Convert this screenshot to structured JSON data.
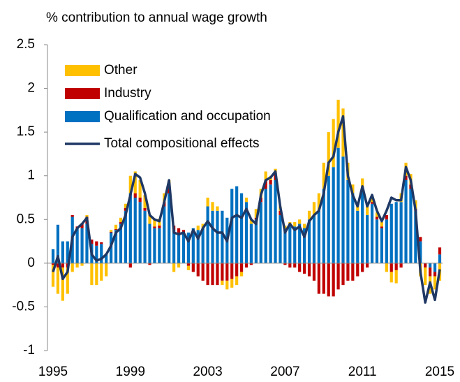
{
  "chart_data": {
    "type": "bar",
    "stacked": true,
    "y_label": "% contribution to annual wage growth",
    "x": [
      1995,
      1995.25,
      1995.5,
      1995.75,
      1996,
      1996.25,
      1996.5,
      1996.75,
      1997,
      1997.25,
      1997.5,
      1997.75,
      1998,
      1998.25,
      1998.5,
      1998.75,
      1999,
      1999.25,
      1999.5,
      1999.75,
      2000,
      2000.25,
      2000.5,
      2000.75,
      2001,
      2001.25,
      2001.5,
      2001.75,
      2002,
      2002.25,
      2002.5,
      2002.75,
      2003,
      2003.25,
      2003.5,
      2003.75,
      2004,
      2004.25,
      2004.5,
      2004.75,
      2005,
      2005.25,
      2005.5,
      2005.75,
      2006,
      2006.25,
      2006.5,
      2006.75,
      2007,
      2007.25,
      2007.5,
      2007.75,
      2008,
      2008.25,
      2008.5,
      2008.75,
      2009,
      2009.25,
      2009.5,
      2009.75,
      2010,
      2010.25,
      2010.5,
      2010.75,
      2011,
      2011.25,
      2011.5,
      2011.75,
      2012,
      2012.25,
      2012.5,
      2012.75,
      2013,
      2013.25,
      2013.5,
      2013.75,
      2014,
      2014.25,
      2014.5,
      2014.75,
      2015
    ],
    "series": [
      {
        "name": "Other",
        "color": "#ffc000",
        "values": [
          -0.25,
          -0.3,
          -0.38,
          -0.3,
          -0.1,
          -0.05,
          -0.03,
          0.02,
          -0.25,
          -0.25,
          -0.2,
          -0.15,
          0.02,
          0.05,
          0.05,
          0.05,
          0.2,
          0.25,
          0.2,
          0.15,
          0.1,
          0.08,
          0.08,
          0.1,
          0.05,
          -0.1,
          -0.05,
          0,
          -0.05,
          0,
          0.05,
          0.05,
          0.1,
          0.1,
          0.05,
          -0.05,
          -0.1,
          -0.1,
          -0.1,
          -0.05,
          0.05,
          0.05,
          0.1,
          0.1,
          0.1,
          0.05,
          0.05,
          0.05,
          0.05,
          0.05,
          0.05,
          0.05,
          0.05,
          0.1,
          0.15,
          0.2,
          0.3,
          0.5,
          0.55,
          0.55,
          0.55,
          0.2,
          0.1,
          0.05,
          0.15,
          0.1,
          0.05,
          0.05,
          0.05,
          -0.1,
          -0.12,
          -0.15,
          0.1,
          0.15,
          0.12,
          0.1,
          -0.15,
          -0.2,
          -0.2,
          -0.15,
          -0.2
        ]
      },
      {
        "name": "Industry",
        "color": "#c00000",
        "values": [
          -0.02,
          -0.05,
          -0.05,
          -0.05,
          0.02,
          0.02,
          0.05,
          0.08,
          0.05,
          0.05,
          0.02,
          0.01,
          0.01,
          0.01,
          0.02,
          0.03,
          -0.05,
          0.05,
          0.05,
          0.03,
          -0.02,
          0.02,
          0.03,
          0.05,
          0.1,
          0.05,
          0.05,
          0.03,
          -0.03,
          -0.1,
          -0.15,
          -0.2,
          -0.25,
          -0.25,
          -0.25,
          -0.2,
          -0.2,
          -0.18,
          -0.15,
          -0.1,
          -0.05,
          -0.02,
          0.02,
          0.05,
          0.1,
          0.05,
          0.08,
          0.05,
          -0.02,
          -0.05,
          -0.05,
          -0.1,
          -0.12,
          -0.15,
          -0.2,
          -0.35,
          -0.35,
          -0.38,
          -0.38,
          -0.3,
          -0.25,
          -0.2,
          -0.2,
          -0.15,
          -0.1,
          -0.05,
          0.02,
          0.03,
          0.02,
          0.05,
          -0.1,
          -0.08,
          -0.05,
          0.05,
          0.05,
          0.02,
          0.05,
          -0.05,
          -0.1,
          -0.05,
          0.08
        ]
      },
      {
        "name": "Qualification and occupation",
        "color": "#0070c0",
        "values": [
          0.16,
          0.44,
          0.25,
          0.25,
          0.53,
          0.4,
          0.4,
          0.45,
          0.22,
          0.2,
          0.22,
          0.1,
          0.35,
          0.38,
          0.45,
          0.6,
          0.8,
          0.75,
          0.7,
          0.6,
          0.45,
          0.4,
          0.4,
          0.65,
          0.8,
          0.38,
          0.35,
          0.35,
          0.35,
          0.4,
          0.38,
          0.4,
          0.65,
          0.6,
          0.6,
          0.6,
          0.52,
          0.85,
          0.88,
          0.8,
          0.7,
          0.45,
          0.5,
          0.7,
          0.85,
          0.9,
          0.95,
          0.55,
          0.38,
          0.42,
          0.42,
          0.45,
          0.4,
          0.5,
          0.55,
          0.6,
          0.85,
          1.0,
          1.1,
          1.32,
          1.22,
          0.95,
          0.8,
          0.6,
          0.82,
          0.55,
          0.68,
          0.5,
          0.4,
          0.5,
          0.68,
          0.7,
          0.7,
          0.95,
          0.85,
          0.6,
          0.25,
          0,
          -0.05,
          -0.1,
          0.1
        ]
      },
      {
        "name": "Total compositional effects",
        "color": "#1f3864",
        "type": "line",
        "values": [
          -0.1,
          0.08,
          -0.18,
          -0.1,
          0.3,
          0.4,
          0.45,
          0.52,
          0.1,
          0.03,
          0.05,
          0.1,
          0.2,
          0.35,
          0.4,
          0.55,
          0.78,
          1.02,
          0.98,
          0.8,
          0.55,
          0.5,
          0.48,
          0.7,
          0.95,
          0.35,
          0.33,
          0.35,
          0.25,
          0.38,
          0.28,
          0.4,
          0.48,
          0.4,
          0.35,
          0.35,
          0.25,
          0.52,
          0.55,
          0.52,
          0.62,
          0.5,
          0.45,
          0.78,
          0.95,
          0.98,
          1.05,
          0.65,
          0.35,
          0.45,
          0.38,
          0.42,
          0.3,
          0.48,
          0.55,
          0.6,
          0.8,
          1.15,
          1.22,
          1.5,
          1.68,
          1.0,
          0.78,
          0.65,
          0.88,
          0.65,
          0.78,
          0.6,
          0.48,
          0.6,
          0.75,
          0.72,
          0.72,
          1.1,
          0.95,
          0.6,
          -0.1,
          -0.45,
          -0.22,
          -0.42,
          -0.07
        ]
      }
    ],
    "xlim": [
      1995,
      2015
    ],
    "xticks": [
      1995,
      1999,
      2003,
      2007,
      2011,
      2015
    ],
    "ylim": [
      -1,
      2.5
    ],
    "yticks": [
      -1,
      -0.5,
      0,
      0.5,
      1,
      1.5,
      2,
      2.5
    ],
    "legend": "upper left"
  }
}
